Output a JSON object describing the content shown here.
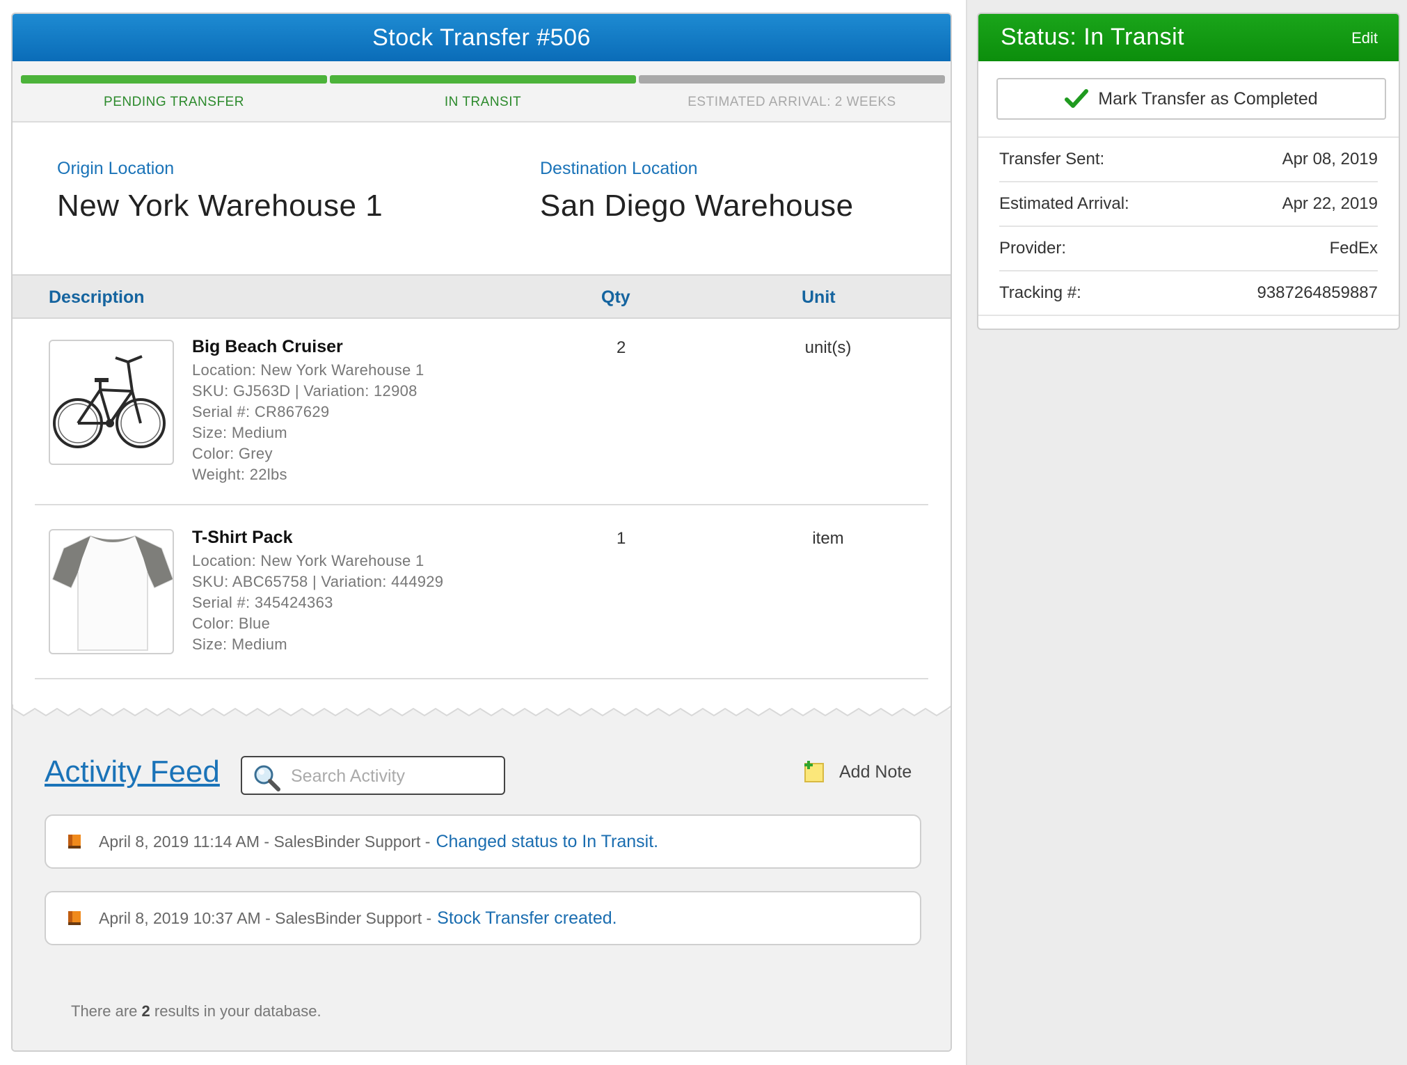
{
  "transfer": {
    "title": "Stock Transfer #506"
  },
  "progress": [
    {
      "label": "PENDING TRANSFER",
      "state": "complete"
    },
    {
      "label": "IN TRANSIT",
      "state": "complete"
    },
    {
      "label": "ESTIMATED ARRIVAL: 2 WEEKS",
      "state": "pending"
    }
  ],
  "locations": {
    "origin_label": "Origin Location",
    "origin_value": "New York Warehouse 1",
    "destination_label": "Destination Location",
    "destination_value": "San Diego Warehouse"
  },
  "table": {
    "headers": {
      "description": "Description",
      "qty": "Qty",
      "unit": "Unit"
    },
    "items": [
      {
        "name": "Big Beach Cruiser",
        "image_icon": "bicycle-image",
        "details": [
          "Location: New York Warehouse 1",
          "SKU: GJ563D | Variation: 12908",
          "Serial #: CR867629",
          "Size: Medium",
          "Color: Grey",
          "Weight: 22lbs"
        ],
        "qty": "2",
        "unit": "unit(s)"
      },
      {
        "name": "T-Shirt Pack",
        "image_icon": "tshirt-image",
        "details": [
          "Location: New York Warehouse 1",
          "SKU: ABC65758 | Variation: 444929",
          "Serial #: 345424363",
          "Color: Blue",
          "Size: Medium"
        ],
        "qty": "1",
        "unit": "item"
      }
    ]
  },
  "activity": {
    "title": "Activity Feed",
    "search_placeholder": "Search Activity",
    "add_note_label": "Add Note",
    "entries": [
      {
        "meta": "April 8, 2019 11:14 AM - SalesBinder Support -",
        "action": "Changed status to In Transit."
      },
      {
        "meta": "April 8, 2019 10:37 AM - SalesBinder Support -",
        "action": "Stock Transfer created."
      }
    ],
    "result_prefix": "There are",
    "result_count": "2",
    "result_suffix": "results in your database."
  },
  "status": {
    "title": "Status: In Transit",
    "edit_label": "Edit",
    "complete_button": "Mark Transfer as Completed",
    "info": [
      {
        "label": "Transfer Sent:",
        "value": "Apr 08, 2019"
      },
      {
        "label": "Estimated Arrival:",
        "value": "Apr 22, 2019"
      },
      {
        "label": "Provider:",
        "value": "FedEx"
      },
      {
        "label": "Tracking #:",
        "value": "9387264859887"
      }
    ]
  },
  "colors": {
    "header_blue": "#0a6cb8",
    "status_green": "#0c8e0c",
    "progress_complete": "#4cb33a",
    "progress_pending": "#a9a9a9",
    "link_blue": "#1a73b8"
  }
}
